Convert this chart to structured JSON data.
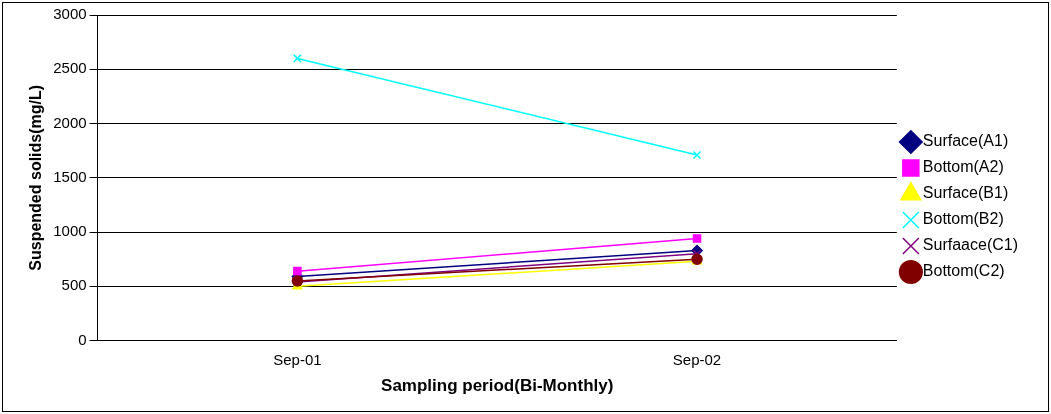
{
  "chart_data": {
    "type": "line",
    "xlabel": "Sampling period(Bi-Monthly)",
    "ylabel": "Suspended solids(mg/L)",
    "categories": [
      "Sep-01",
      "Sep-02"
    ],
    "series": [
      {
        "name": "Surface(A1)",
        "color": "#000080",
        "marker": "diamond",
        "values": [
          590,
          830
        ]
      },
      {
        "name": "Bottom(A2)",
        "color": "#ff00ff",
        "marker": "square",
        "values": [
          640,
          940
        ]
      },
      {
        "name": "Surface(B1)",
        "color": "#ffff00",
        "marker": "triangle",
        "values": [
          500,
          730
        ]
      },
      {
        "name": "Bottom(B2)",
        "color": "#00ffff",
        "marker": "cross",
        "values": [
          2600,
          1710
        ]
      },
      {
        "name": "Surfaace(C1)",
        "color": "#800080",
        "marker": "cross",
        "values": [
          540,
          800
        ]
      },
      {
        "name": "Bottom(C2)",
        "color": "#800000",
        "marker": "circle",
        "values": [
          550,
          750
        ]
      }
    ],
    "ylim": [
      0,
      3000
    ],
    "yticks": [
      0,
      500,
      1000,
      1500,
      2000,
      2500,
      3000
    ],
    "grid": "y",
    "legend": "right",
    "line_style": "solid"
  }
}
